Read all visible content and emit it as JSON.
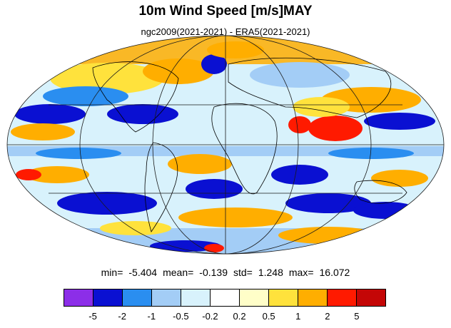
{
  "title": "10m Wind Speed [m/s]MAY",
  "subtitle": "ngc2009(2021-2021) - ERA5(2021-2021)",
  "stats": {
    "min_label": "min=",
    "min": "-5.404",
    "mean_label": "mean=",
    "mean": "-0.139",
    "std_label": "std=",
    "std": "1.248",
    "max_label": "max=",
    "max": "16.072"
  },
  "colorbar": {
    "colors": [
      "#8c2ee8",
      "#0a10d2",
      "#2a8ef0",
      "#a3cdf6",
      "#d8f2fc",
      "#ffffff",
      "#fffec8",
      "#ffe23c",
      "#ffae00",
      "#ff1a00",
      "#c40606"
    ],
    "labels": [
      "-5",
      "-2",
      "-1",
      "-0.5",
      "-0.2",
      "0.2",
      "0.5",
      "1",
      "2",
      "5"
    ]
  },
  "map": {
    "projection": "mollweide",
    "background": "#ffffff",
    "grid_color": "#1a1a1a"
  }
}
